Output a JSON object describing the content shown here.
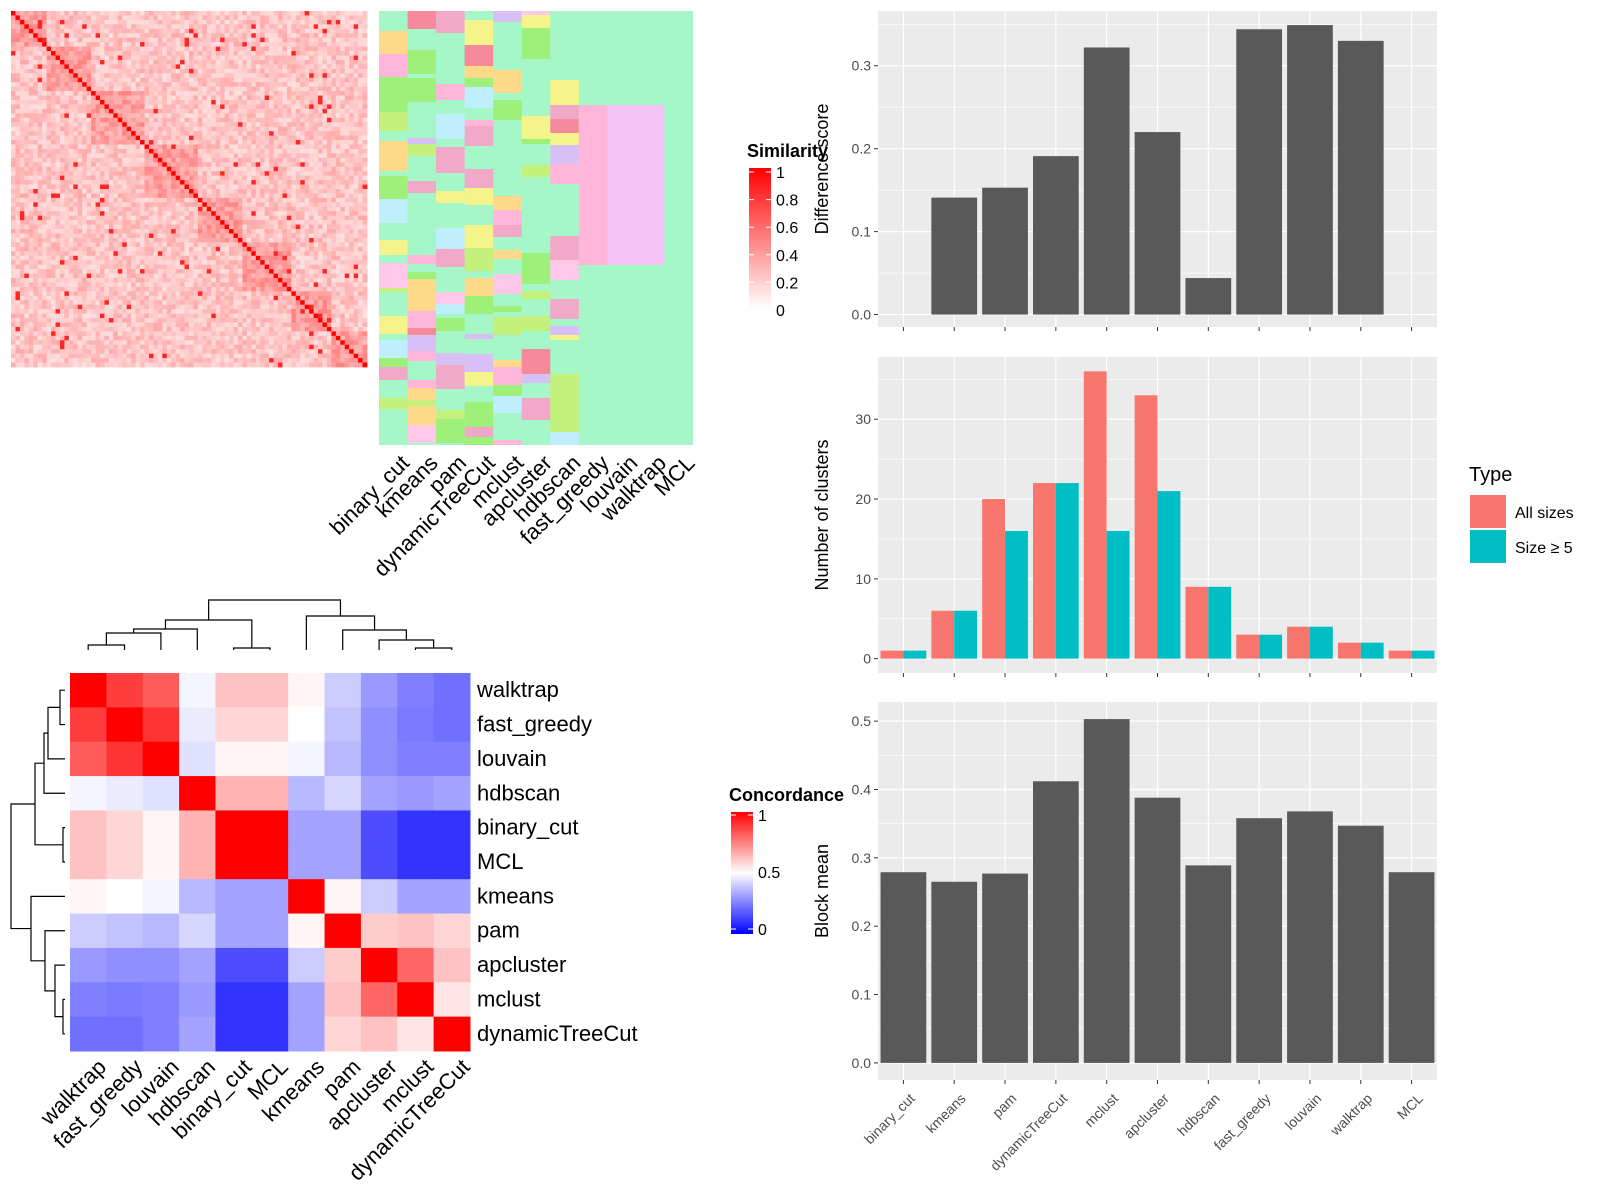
{
  "methods": [
    "binary_cut",
    "kmeans",
    "pam",
    "dynamicTreeCut",
    "mclust",
    "apcluster",
    "hdbscan",
    "fast_greedy",
    "louvain",
    "walktrap",
    "MCL"
  ],
  "similarity_heatmap": {
    "legend_title": "Similarity",
    "legend_ticks": [
      "1",
      "0.8",
      "0.6",
      "0.4",
      "0.2",
      "0"
    ],
    "color_low": "#ffffff",
    "color_high": "#ff0000",
    "annotation_bg": "#a6f7c8",
    "columns": [
      "binary_cut",
      "kmeans",
      "pam",
      "dynamicTreeCut",
      "mclust",
      "apcluster",
      "hdbscan",
      "fast_greedy",
      "louvain",
      "walktrap",
      "MCL"
    ]
  },
  "concordance_heatmap": {
    "legend_title": "Concordance",
    "legend_ticks": [
      "1",
      "0.5",
      "0"
    ],
    "color_low": "#0000ff",
    "color_mid": "#ffffff",
    "color_high": "#ff0000",
    "row_labels": [
      "walktrap",
      "fast_greedy",
      "louvain",
      "hdbscan",
      "binary_cut",
      "MCL",
      "kmeans",
      "pam",
      "apcluster",
      "mclust",
      "dynamicTreeCut"
    ],
    "col_labels": [
      "walktrap",
      "fast_greedy",
      "louvain",
      "hdbscan",
      "binary_cut",
      "MCL",
      "kmeans",
      "pam",
      "apcluster",
      "mclust",
      "dynamicTreeCut"
    ],
    "values": [
      [
        1.0,
        0.88,
        0.82,
        0.48,
        0.62,
        0.62,
        0.52,
        0.4,
        0.3,
        0.25,
        0.22
      ],
      [
        0.88,
        1.0,
        0.9,
        0.46,
        0.58,
        0.58,
        0.5,
        0.38,
        0.28,
        0.24,
        0.22
      ],
      [
        0.82,
        0.9,
        1.0,
        0.44,
        0.52,
        0.52,
        0.48,
        0.36,
        0.28,
        0.25,
        0.25
      ],
      [
        0.48,
        0.46,
        0.44,
        1.0,
        0.65,
        0.65,
        0.36,
        0.42,
        0.32,
        0.3,
        0.32
      ],
      [
        0.62,
        0.58,
        0.52,
        0.65,
        1.0,
        1.0,
        0.32,
        0.32,
        0.15,
        0.1,
        0.1
      ],
      [
        0.62,
        0.58,
        0.52,
        0.65,
        1.0,
        1.0,
        0.32,
        0.32,
        0.15,
        0.1,
        0.1
      ],
      [
        0.52,
        0.5,
        0.48,
        0.36,
        0.32,
        0.32,
        1.0,
        0.52,
        0.4,
        0.32,
        0.32
      ],
      [
        0.4,
        0.38,
        0.36,
        0.42,
        0.32,
        0.32,
        0.52,
        1.0,
        0.6,
        0.62,
        0.58
      ],
      [
        0.3,
        0.28,
        0.28,
        0.32,
        0.15,
        0.15,
        0.4,
        0.6,
        1.0,
        0.8,
        0.62
      ],
      [
        0.25,
        0.24,
        0.25,
        0.3,
        0.1,
        0.1,
        0.32,
        0.62,
        0.8,
        1.0,
        0.55
      ],
      [
        0.22,
        0.22,
        0.25,
        0.32,
        0.1,
        0.1,
        0.32,
        0.58,
        0.62,
        0.55,
        1.0
      ]
    ]
  },
  "chart_data": [
    {
      "type": "bar",
      "ylabel": "Difference score",
      "categories": [
        "binary_cut",
        "kmeans",
        "pam",
        "dynamicTreeCut",
        "mclust",
        "apcluster",
        "hdbscan",
        "fast_greedy",
        "louvain",
        "walktrap",
        "MCL"
      ],
      "values": [
        0,
        0.141,
        0.153,
        0.191,
        0.322,
        0.22,
        0.044,
        0.344,
        0.349,
        0.33,
        0
      ],
      "ylim": [
        -0.015,
        0.366
      ],
      "yticks": [
        0.0,
        0.1,
        0.2,
        0.3
      ],
      "ytick_labels": [
        "0.0",
        "0.1",
        "0.2",
        "0.3"
      ],
      "bar_color": "#595959",
      "show_x_labels": false
    },
    {
      "type": "bar",
      "ylabel": "Number of clusters",
      "categories": [
        "binary_cut",
        "kmeans",
        "pam",
        "dynamicTreeCut",
        "mclust",
        "apcluster",
        "hdbscan",
        "fast_greedy",
        "louvain",
        "walktrap",
        "MCL"
      ],
      "series": [
        {
          "name": "All sizes",
          "color": "#f8766d",
          "values": [
            1,
            6,
            20,
            22,
            36,
            33,
            9,
            3,
            4,
            2,
            1
          ]
        },
        {
          "name": "Size ≥ 5",
          "color": "#00bfc4",
          "values": [
            1,
            6,
            16,
            22,
            16,
            21,
            9,
            3,
            4,
            2,
            1
          ]
        }
      ],
      "ylim": [
        -1.8,
        37.8
      ],
      "yticks": [
        0,
        10,
        20,
        30
      ],
      "ytick_labels": [
        "0",
        "10",
        "20",
        "30"
      ],
      "legend_title": "Type",
      "legend_position": "right",
      "show_x_labels": false
    },
    {
      "type": "bar",
      "ylabel": "Block mean",
      "categories": [
        "binary_cut",
        "kmeans",
        "pam",
        "dynamicTreeCut",
        "mclust",
        "apcluster",
        "hdbscan",
        "fast_greedy",
        "louvain",
        "walktrap",
        "MCL"
      ],
      "values": [
        0.279,
        0.265,
        0.277,
        0.412,
        0.503,
        0.388,
        0.289,
        0.358,
        0.368,
        0.347,
        0.279
      ],
      "ylim": [
        -0.025,
        0.528
      ],
      "yticks": [
        0.0,
        0.1,
        0.2,
        0.3,
        0.4,
        0.5
      ],
      "ytick_labels": [
        "0.0",
        "0.1",
        "0.2",
        "0.3",
        "0.4",
        "0.5"
      ],
      "bar_color": "#595959",
      "show_x_labels": true
    }
  ]
}
